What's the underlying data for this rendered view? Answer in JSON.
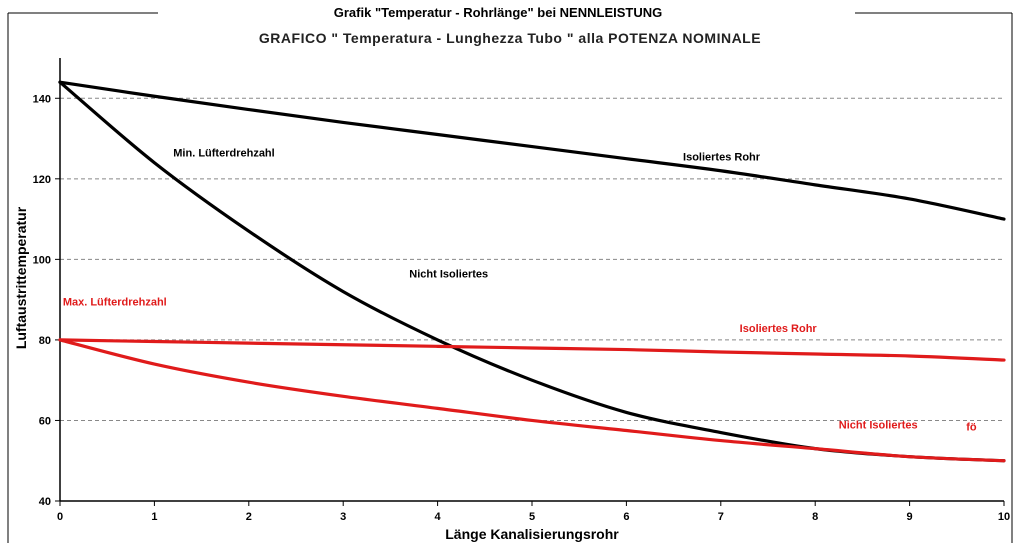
{
  "chart_data": {
    "type": "line",
    "title": "Grafik \"Temperatur - Rohrlänge\" bei NENNLEISTUNG",
    "subtitle": "GRAFICO \" Temperatura - Lunghezza Tubo \" alla POTENZA NOMINALE",
    "xlabel": "Länge Kanalisierungsrohr",
    "ylabel": "Luftaustrittemperatur",
    "xlim": [
      0,
      10
    ],
    "ylim": [
      40,
      150
    ],
    "x_ticks": [
      0,
      1,
      2,
      3,
      4,
      5,
      6,
      7,
      8,
      9,
      10
    ],
    "y_ticks": [
      40,
      60,
      80,
      100,
      120,
      140
    ],
    "grid": "horizontal-dashed",
    "colors": {
      "min_fan": "#000000",
      "max_fan": "#e01b1b",
      "grid": "#888888"
    },
    "series": [
      {
        "color": "#000000",
        "x": [
          0,
          1,
          2,
          3,
          4,
          5,
          6,
          7,
          8,
          9,
          10
        ],
        "y": [
          144,
          140.5,
          137.2,
          134,
          131,
          128,
          125,
          122,
          118.5,
          115,
          110
        ]
      },
      {
        "color": "#000000",
        "x": [
          0,
          1,
          2,
          3,
          4,
          5,
          6,
          7,
          8,
          9,
          10
        ],
        "y": [
          144,
          124,
          107,
          92,
          80,
          70,
          62,
          57,
          53,
          51,
          50
        ]
      },
      {
        "color": "#e01b1b",
        "x": [
          0,
          1,
          2,
          3,
          4,
          5,
          6,
          7,
          8,
          9,
          10
        ],
        "y": [
          80,
          79.6,
          79.2,
          78.8,
          78.4,
          78,
          77.6,
          77,
          76.5,
          76,
          75
        ]
      },
      {
        "color": "#e01b1b",
        "x": [
          0,
          1,
          2,
          3,
          4,
          5,
          6,
          7,
          8,
          9,
          10
        ],
        "y": [
          80,
          74,
          69.5,
          66,
          63,
          60,
          57.5,
          55,
          53,
          51,
          50
        ]
      }
    ],
    "annotations": [
      {
        "text": "Min. Lüfterdrehzahl",
        "x": 1.2,
        "y": 125.5,
        "color": "#000000"
      },
      {
        "text": "Isoliertes Rohr",
        "x": 6.6,
        "y": 124.5,
        "color": "#000000"
      },
      {
        "text": "Nicht Isoliertes",
        "x": 3.7,
        "y": 95.5,
        "color": "#000000"
      },
      {
        "text": "Max. Lüfterdrehzahl",
        "x": 0.03,
        "y": 88.5,
        "color": "#e01b1b"
      },
      {
        "text": "Isoliertes Rohr",
        "x": 7.2,
        "y": 82,
        "color": "#e01b1b"
      },
      {
        "text": "Nicht Isoliertes",
        "x": 8.25,
        "y": 58,
        "color": "#e01b1b"
      },
      {
        "text": "fö",
        "x": 9.6,
        "y": 57.5,
        "color": "#e01b1b"
      }
    ]
  }
}
